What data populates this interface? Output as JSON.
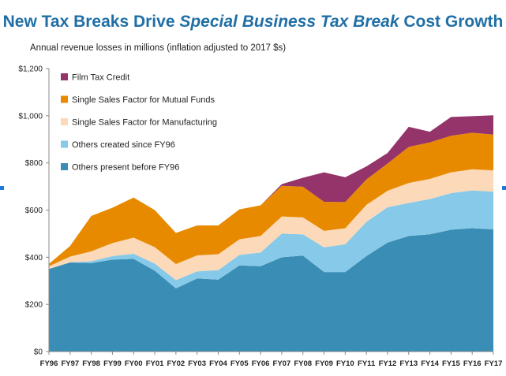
{
  "chart_data": {
    "type": "area",
    "stacked": true,
    "title_parts": [
      {
        "text": "New Tax Breaks Drive ",
        "italic": false
      },
      {
        "text": "Special Business Tax Break",
        "italic": true
      },
      {
        "text": " Cost Growth",
        "italic": false
      }
    ],
    "subtitle": "Annual revenue losses in millions (inflation adjusted to 2017 $s)",
    "categories": [
      "FY96",
      "FY97",
      "FY98",
      "FY99",
      "FY00",
      "FY01",
      "FY02",
      "FY03",
      "FY04",
      "FY05",
      "FY06",
      "FY07",
      "FY08",
      "FY09",
      "FY10",
      "FY11",
      "FY12",
      "FY13",
      "FY14",
      "FY15",
      "FY16",
      "FY17"
    ],
    "ylim": [
      0,
      1200
    ],
    "yticks": [
      0,
      200,
      400,
      600,
      800,
      1000,
      1200
    ],
    "ytick_labels": [
      "$0",
      "$200",
      "$400",
      "$600",
      "$800",
      "$1,000",
      "$1,200"
    ],
    "legend_position": "top-left",
    "series": [
      {
        "name": "Others present before FY96",
        "color": "#3a8db5",
        "values": [
          350,
          378,
          375,
          390,
          393,
          343,
          268,
          310,
          305,
          365,
          362,
          400,
          407,
          337,
          337,
          405,
          462,
          490,
          497,
          517,
          523,
          518
        ]
      },
      {
        "name": "Others created since FY96",
        "color": "#87c9e8",
        "values": [
          0,
          0,
          8,
          15,
          22,
          30,
          35,
          30,
          40,
          45,
          58,
          100,
          90,
          105,
          118,
          145,
          150,
          140,
          150,
          155,
          160,
          160
        ]
      },
      {
        "name": "Single Sales Factor for Manufacturing",
        "color": "#fbd9b9",
        "values": [
          12,
          25,
          42,
          55,
          68,
          70,
          68,
          68,
          68,
          66,
          70,
          73,
          72,
          70,
          68,
          72,
          70,
          85,
          85,
          88,
          90,
          90
        ]
      },
      {
        "name": "Single Sales Factor for Mutual Funds",
        "color": "#e88a00",
        "values": [
          10,
          45,
          150,
          150,
          170,
          157,
          132,
          127,
          122,
          127,
          130,
          130,
          130,
          123,
          111,
          108,
          115,
          153,
          155,
          155,
          155,
          152
        ]
      },
      {
        "name": "Film  Tax Credit",
        "color": "#95346a",
        "values": [
          0,
          0,
          0,
          0,
          0,
          0,
          0,
          0,
          0,
          0,
          0,
          7,
          38,
          125,
          105,
          55,
          45,
          85,
          45,
          80,
          70,
          82
        ]
      }
    ],
    "legend_order": [
      4,
      3,
      2,
      1,
      0
    ]
  }
}
